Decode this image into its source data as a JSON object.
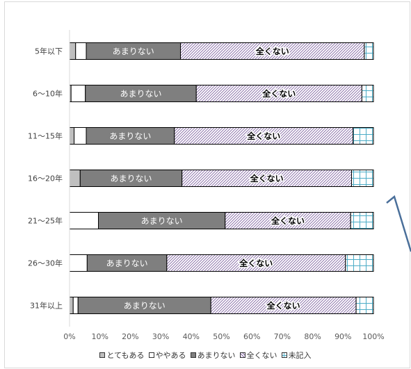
{
  "chart_data": {
    "type": "bar",
    "orientation": "horizontal",
    "stacked": "percent",
    "categories": [
      "5年以下",
      "6～10年",
      "11～15年",
      "16～20年",
      "21～25年",
      "26～30年",
      "31年以上"
    ],
    "series": [
      {
        "name": "とてもある",
        "values": [
          2.0,
          0.5,
          1.5,
          3.5,
          0.0,
          0.0,
          1.2
        ],
        "color": "#bfbfbf",
        "pattern": "solid"
      },
      {
        "name": "ややある",
        "values": [
          3.5,
          4.7,
          4.0,
          0.0,
          9.5,
          5.8,
          1.6
        ],
        "color": "#ffffff",
        "pattern": "solid"
      },
      {
        "name": "あまりない",
        "values": [
          31.0,
          36.5,
          29.0,
          33.5,
          41.7,
          26.2,
          43.7
        ],
        "color": "#7f7f7f",
        "pattern": "solid",
        "label": "あまりない"
      },
      {
        "name": "全くない",
        "values": [
          60.5,
          54.5,
          58.8,
          55.8,
          41.3,
          58.8,
          47.8
        ],
        "color": "#8064a2",
        "pattern": "hatch",
        "label": "全くない"
      },
      {
        "name": "未記入",
        "values": [
          3.0,
          3.8,
          6.7,
          7.2,
          7.5,
          9.2,
          5.7
        ],
        "color": "#ffffff",
        "pattern": "grid"
      }
    ],
    "xaxis": {
      "min": 0,
      "max": 100,
      "ticks": [
        0,
        10,
        20,
        30,
        40,
        50,
        60,
        70,
        80,
        90,
        100
      ],
      "tick_labels": [
        "0%",
        "10%",
        "20%",
        "30%",
        "40%",
        "50%",
        "60%",
        "70%",
        "80%",
        "90%",
        "100%"
      ]
    },
    "grid": false,
    "legend_position": "bottom"
  }
}
